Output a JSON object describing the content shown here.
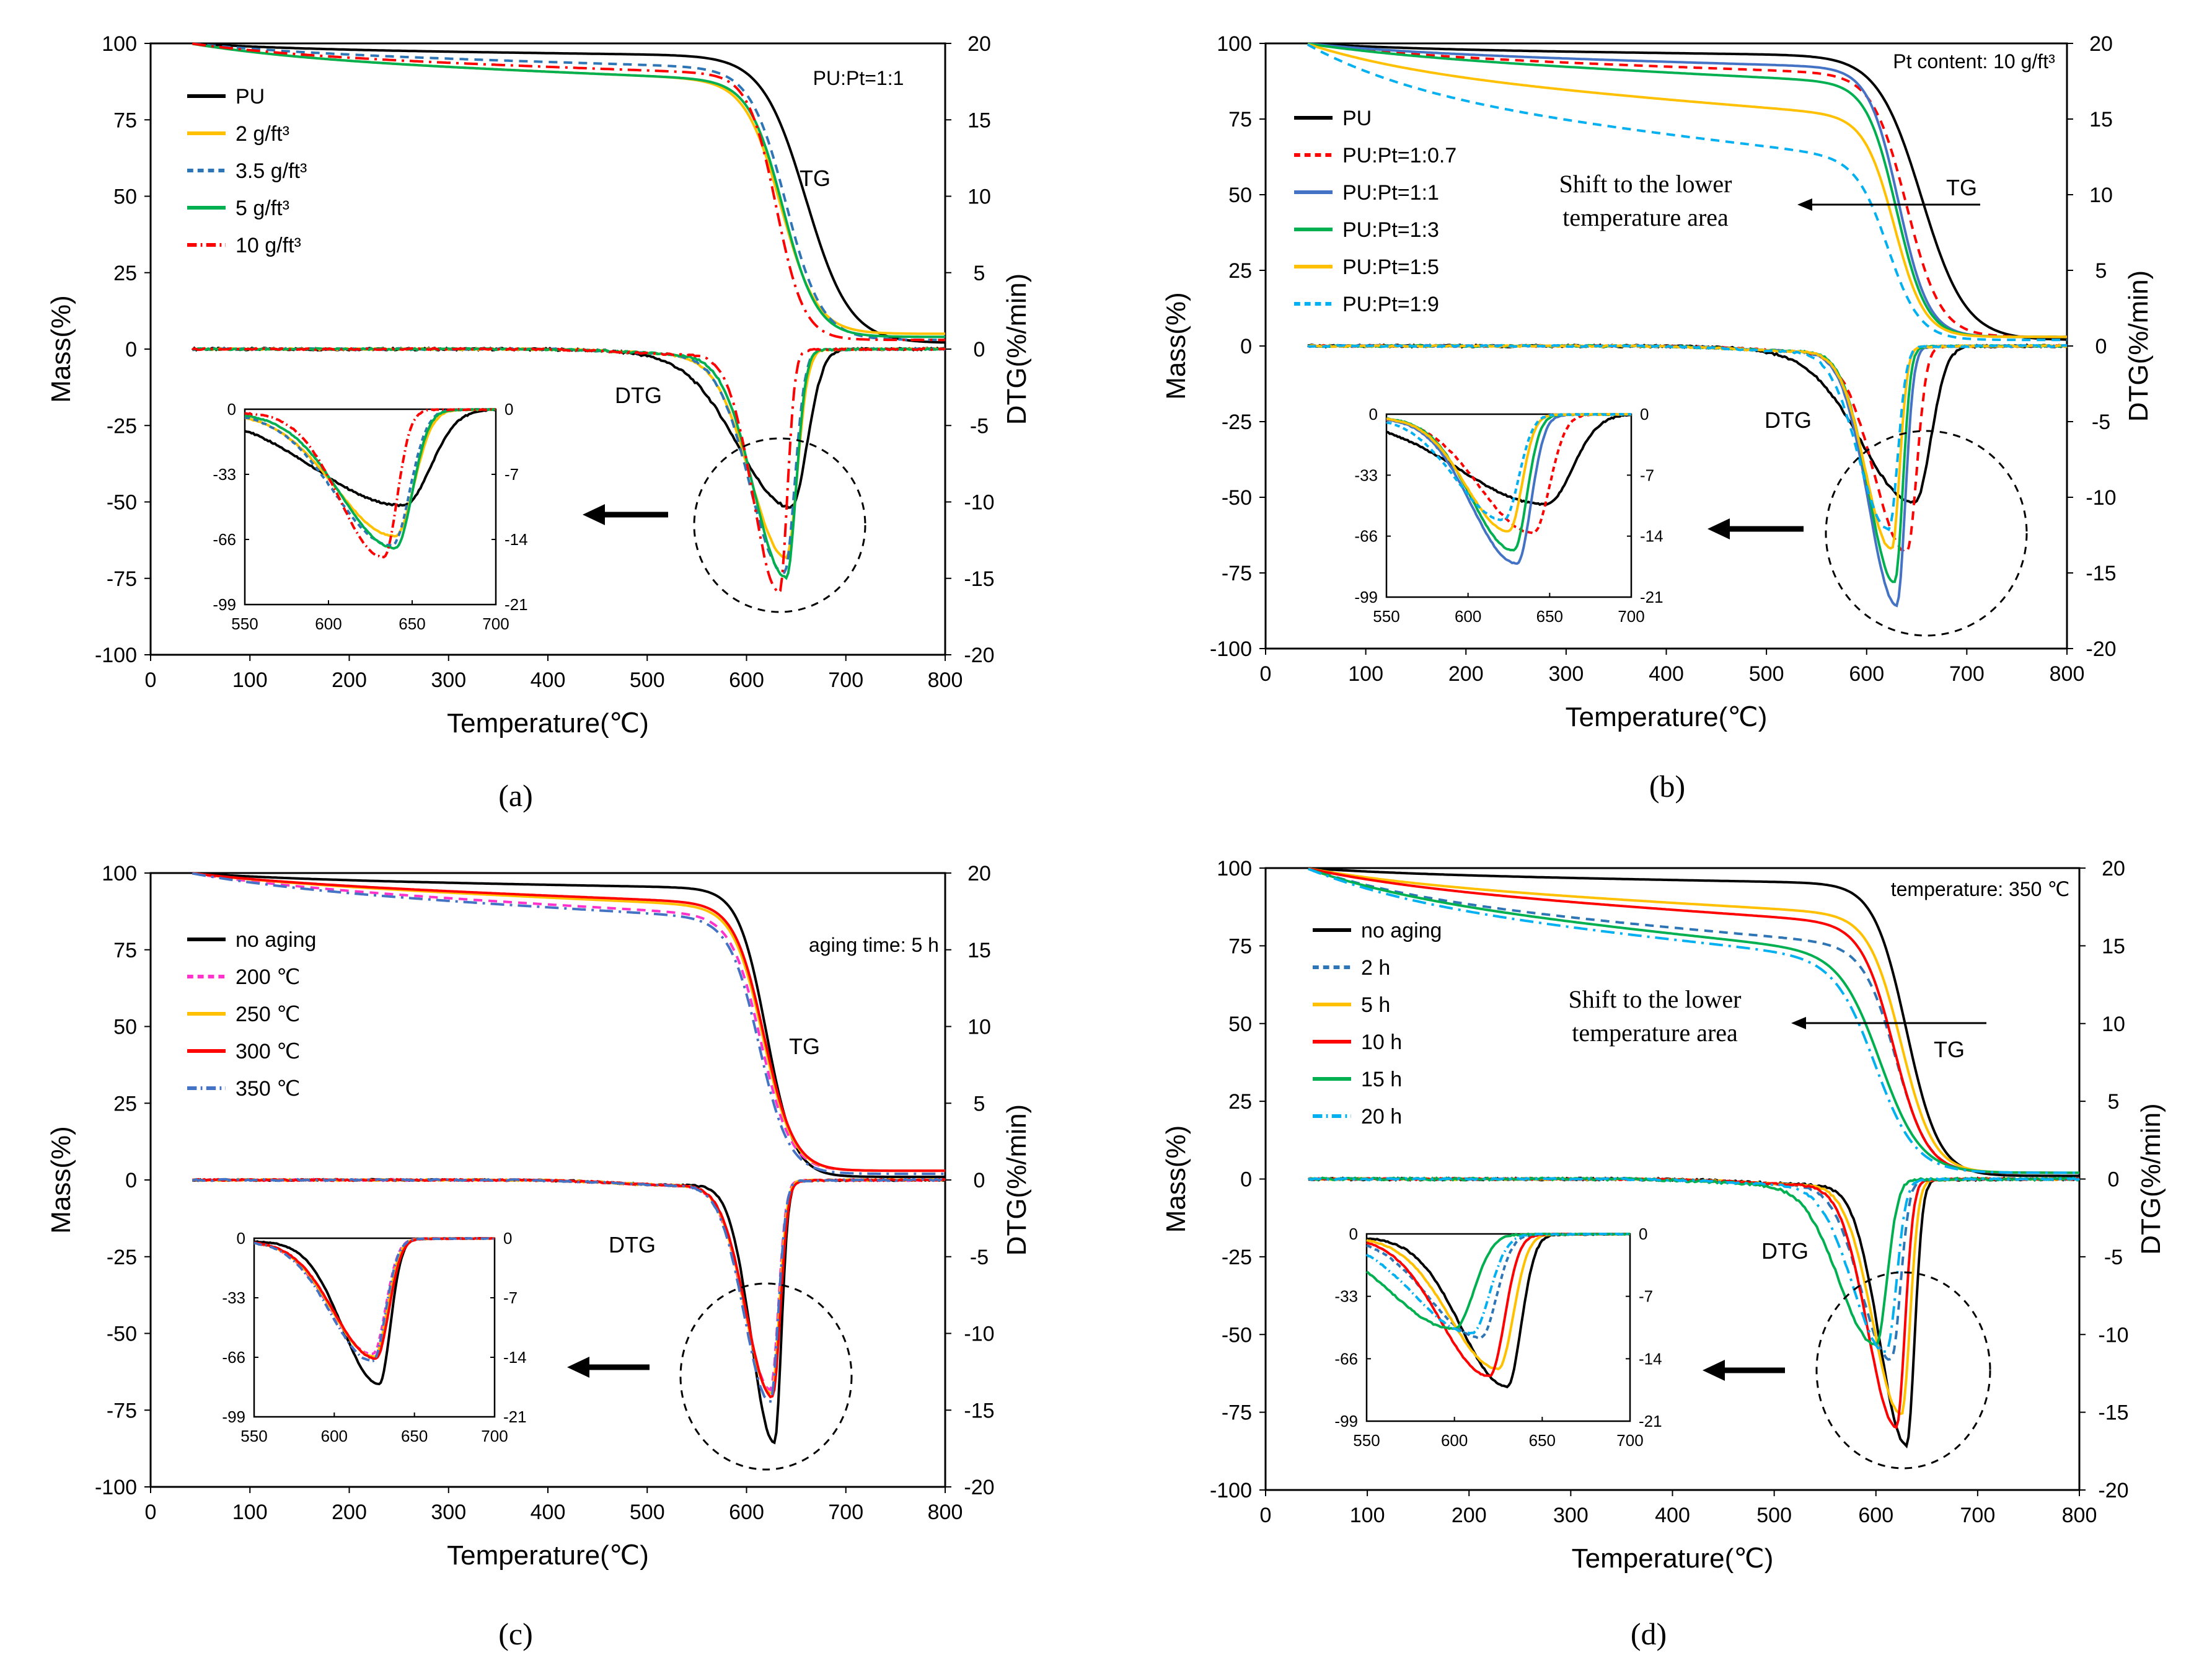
{
  "figure": {
    "panel_labels": [
      "(a)",
      "(b)",
      "(c)",
      "(d)"
    ]
  },
  "common": {
    "xlabel": "Temperature(℃)",
    "ylabel_left": "Mass(%)",
    "ylabel_right": "DTG(%/min)",
    "x_ticks": [
      0,
      100,
      200,
      300,
      400,
      500,
      600,
      700,
      800
    ],
    "y_left_ticks": [
      -100,
      -75,
      -50,
      -25,
      0,
      25,
      50,
      75,
      100
    ],
    "y_right_ticks": [
      -20,
      -15,
      -10,
      -5,
      0,
      5,
      10,
      15,
      20
    ],
    "inset_x_ticks": [
      550,
      600,
      650,
      700
    ],
    "inset_y_left_ticks": [
      "0",
      "-33",
      "-66",
      "-99"
    ],
    "inset_y_right_ticks": [
      "0",
      "-7",
      "-14",
      "-21"
    ],
    "tg_label": "TG",
    "dtg_label": "DTG"
  },
  "chart_data": [
    {
      "type": "line",
      "panel": "(a)",
      "annotation": "PU:Pt=1:1",
      "xlim": [
        0,
        800
      ],
      "ylim_left": [
        -100,
        100
      ],
      "ylim_right": [
        -20,
        20
      ],
      "grid": false,
      "legend_position": "top-left",
      "series": [
        {
          "name": "PU",
          "color": "#000000",
          "dash": "solid",
          "tg": {
            "start": 100,
            "plateau": 98,
            "pre_slope": 2,
            "onset_mid": 660,
            "width": 22,
            "residual": 2
          },
          "dtg": {
            "peak_x": 645,
            "peak": -10.2,
            "width": 32,
            "noise": 0.15
          }
        },
        {
          "name": "2 g/ft³",
          "color": "#FFC000",
          "dash": "solid",
          "tg": {
            "start": 100,
            "plateau": 95,
            "pre_slope": 7,
            "onset_mid": 635,
            "width": 18,
            "residual": 5
          },
          "dtg": {
            "peak_x": 640,
            "peak": -13.5,
            "width": 22,
            "noise": 0.1
          }
        },
        {
          "name": "3.5 g/ft³",
          "color": "#2E75B6",
          "dash": "dash",
          "tg": {
            "start": 100,
            "plateau": 97,
            "pre_slope": 5,
            "onset_mid": 640,
            "width": 18,
            "residual": 3
          },
          "dtg": {
            "peak_x": 638,
            "peak": -14.5,
            "width": 21,
            "noise": 0.1
          }
        },
        {
          "name": "5 g/ft³",
          "color": "#00B050",
          "dash": "solid",
          "tg": {
            "start": 100,
            "plateau": 95,
            "pre_slope": 7,
            "onset_mid": 637,
            "width": 17,
            "residual": 4
          },
          "dtg": {
            "peak_x": 640,
            "peak": -14.8,
            "width": 20,
            "noise": 0.1
          }
        },
        {
          "name": "10 g/ft³",
          "color": "#FF0000",
          "dash": "dashdot",
          "tg": {
            "start": 100,
            "plateau": 96,
            "pre_slope": 6,
            "onset_mid": 630,
            "width": 14,
            "residual": 3
          },
          "dtg": {
            "peak_x": 633,
            "peak": -15.8,
            "width": 16,
            "noise": 0.1
          }
        }
      ]
    },
    {
      "type": "line",
      "panel": "(b)",
      "annotation": "Pt content: 10 g/ft³",
      "shift_note": [
        "Shift to the lower",
        "temperature area"
      ],
      "xlim": [
        0,
        800
      ],
      "ylim_left": [
        -100,
        100
      ],
      "ylim_right": [
        -20,
        20
      ],
      "grid": false,
      "legend_position": "top-left",
      "series": [
        {
          "name": "PU",
          "color": "#000000",
          "dash": "solid",
          "tg": {
            "start": 100,
            "plateau": 98,
            "pre_slope": 2,
            "onset_mid": 655,
            "width": 22,
            "residual": 2
          },
          "dtg": {
            "peak_x": 648,
            "peak": -10.2,
            "width": 32,
            "noise": 0.15
          }
        },
        {
          "name": "PU:Pt=1:0.7",
          "color": "#FF0000",
          "dash": "dash",
          "tg": {
            "start": 100,
            "plateau": 96,
            "pre_slope": 6,
            "onset_mid": 640,
            "width": 17,
            "residual": 3
          },
          "dtg": {
            "peak_x": 640,
            "peak": -13.5,
            "width": 20,
            "noise": 0.1
          }
        },
        {
          "name": "PU:Pt=1:1",
          "color": "#4472C4",
          "dash": "solid",
          "tg": {
            "start": 100,
            "plateau": 97,
            "pre_slope": 5,
            "onset_mid": 632,
            "width": 15,
            "residual": 3
          },
          "dtg": {
            "peak_x": 630,
            "peak": -17.0,
            "width": 17,
            "noise": 0.1
          }
        },
        {
          "name": "PU:Pt=1:3",
          "color": "#00B050",
          "dash": "solid",
          "tg": {
            "start": 100,
            "plateau": 96,
            "pre_slope": 9,
            "onset_mid": 630,
            "width": 15,
            "residual": 3
          },
          "dtg": {
            "peak_x": 628,
            "peak": -15.5,
            "width": 16,
            "noise": 0.1
          }
        },
        {
          "name": "PU:Pt=1:5",
          "color": "#FFC000",
          "dash": "solid",
          "tg": {
            "start": 100,
            "plateau": 90,
            "pre_slope": 14,
            "onset_mid": 628,
            "width": 15,
            "residual": 3
          },
          "dtg": {
            "peak_x": 625,
            "peak": -13.3,
            "width": 16,
            "noise": 0.1
          }
        },
        {
          "name": "PU:Pt=1:9",
          "color": "#00B0F0",
          "dash": "dash",
          "tg": {
            "start": 100,
            "plateau": 82,
            "pre_slope": 20,
            "onset_mid": 622,
            "width": 16,
            "residual": 2
          },
          "dtg": {
            "peak_x": 622,
            "peak": -12.0,
            "width": 18,
            "noise": 0.1
          }
        }
      ]
    },
    {
      "type": "line",
      "panel": "(c)",
      "annotation": "aging time: 5 h",
      "xlim": [
        0,
        800
      ],
      "ylim_left": [
        -100,
        100
      ],
      "ylim_right": [
        -20,
        20
      ],
      "grid": false,
      "legend_position": "top-left",
      "series": [
        {
          "name": "no aging",
          "color": "#000000",
          "dash": "solid",
          "tg": {
            "start": 100,
            "plateau": 98,
            "pre_slope": 3,
            "onset_mid": 620,
            "width": 14,
            "residual": 1
          },
          "dtg": {
            "peak_x": 628,
            "peak": -17.0,
            "width": 14,
            "noise": 0.1
          }
        },
        {
          "name": "200 ℃",
          "color": "#FF33CC",
          "dash": "dash",
          "tg": {
            "start": 100,
            "plateau": 96,
            "pre_slope": 10,
            "onset_mid": 615,
            "width": 15,
            "residual": 3
          },
          "dtg": {
            "peak_x": 624,
            "peak": -13.5,
            "width": 16,
            "noise": 0.1
          }
        },
        {
          "name": "250 ℃",
          "color": "#FFC000",
          "dash": "solid",
          "tg": {
            "start": 100,
            "plateau": 97,
            "pre_slope": 8,
            "onset_mid": 617,
            "width": 15,
            "residual": 3
          },
          "dtg": {
            "peak_x": 625,
            "peak": -13.8,
            "width": 16,
            "noise": 0.1
          }
        },
        {
          "name": "300 ℃",
          "color": "#FF0000",
          "dash": "solid",
          "tg": {
            "start": 100,
            "plateau": 97,
            "pre_slope": 7,
            "onset_mid": 618,
            "width": 15,
            "residual": 3
          },
          "dtg": {
            "peak_x": 626,
            "peak": -14.0,
            "width": 16,
            "noise": 0.1
          }
        },
        {
          "name": "350 ℃",
          "color": "#4472C4",
          "dash": "dashdot",
          "tg": {
            "start": 100,
            "plateau": 95,
            "pre_slope": 10,
            "onset_mid": 613,
            "width": 15,
            "residual": 2
          },
          "dtg": {
            "peak_x": 624,
            "peak": -14.3,
            "width": 16,
            "noise": 0.1
          }
        }
      ]
    },
    {
      "type": "line",
      "panel": "(d)",
      "annotation": "temperature: 350 ℃",
      "shift_note": [
        "Shift to the lower",
        "temperature area"
      ],
      "xlim": [
        0,
        800
      ],
      "ylim_left": [
        -100,
        100
      ],
      "ylim_right": [
        -20,
        20
      ],
      "grid": false,
      "legend_position": "top-left",
      "series": [
        {
          "name": "no aging",
          "color": "#000000",
          "dash": "solid",
          "tg": {
            "start": 100,
            "plateau": 98,
            "pre_slope": 3,
            "onset_mid": 630,
            "width": 16,
            "residual": 1
          },
          "dtg": {
            "peak_x": 630,
            "peak": -17.0,
            "width": 16,
            "noise": 0.15
          }
        },
        {
          "name": "2 h",
          "color": "#2E75B6",
          "dash": "dash",
          "tg": {
            "start": 100,
            "plateau": 90,
            "pre_slope": 15,
            "onset_mid": 620,
            "width": 16,
            "residual": 2
          },
          "dtg": {
            "peak_x": 615,
            "peak": -11.5,
            "width": 18,
            "noise": 0.1
          }
        },
        {
          "name": "5 h",
          "color": "#FFC000",
          "dash": "solid",
          "tg": {
            "start": 100,
            "plateau": 95,
            "pre_slope": 10,
            "onset_mid": 625,
            "width": 16,
            "residual": 2
          },
          "dtg": {
            "peak_x": 625,
            "peak": -15.0,
            "width": 17,
            "noise": 0.1
          }
        },
        {
          "name": "10 h",
          "color": "#FF0000",
          "dash": "solid",
          "tg": {
            "start": 100,
            "plateau": 94,
            "pre_slope": 12,
            "onset_mid": 618,
            "width": 16,
            "residual": 2
          },
          "dtg": {
            "peak_x": 620,
            "peak": -15.8,
            "width": 17,
            "noise": 0.1
          }
        },
        {
          "name": "15 h",
          "color": "#00B050",
          "dash": "solid",
          "tg": {
            "start": 100,
            "plateau": 90,
            "pre_slope": 18,
            "onset_mid": 605,
            "width": 20,
            "residual": 2
          },
          "dtg": {
            "peak_x": 600,
            "peak": -10.5,
            "width": 22,
            "noise": 0.15
          }
        },
        {
          "name": "20 h",
          "color": "#00B0F0",
          "dash": "dashdot",
          "tg": {
            "start": 100,
            "plateau": 88,
            "pre_slope": 18,
            "onset_mid": 600,
            "width": 20,
            "residual": 2
          },
          "dtg": {
            "peak_x": 610,
            "peak": -11.0,
            "width": 20,
            "noise": 0.1
          }
        }
      ]
    }
  ]
}
